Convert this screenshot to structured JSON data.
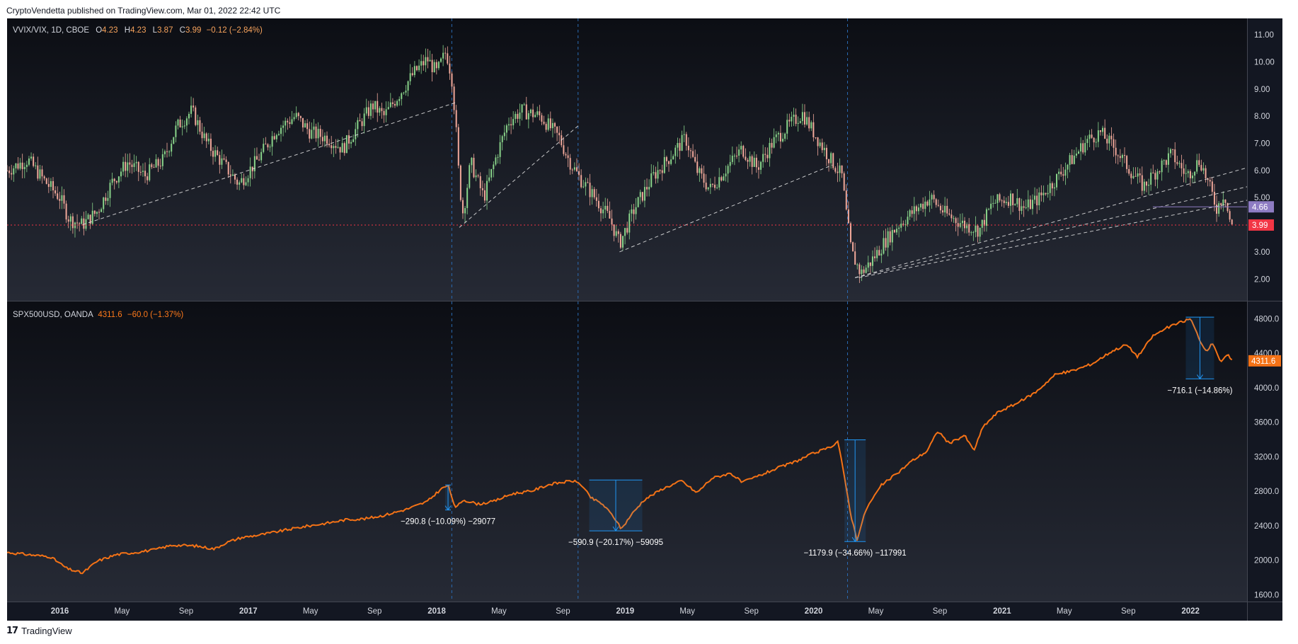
{
  "header": {
    "publisher_line": "CryptoVendetta published on TradingView.com, Mar 01, 2022 22:42 UTC"
  },
  "footer": {
    "brand": "TradingView",
    "logo_icon": "tradingview-logo-icon"
  },
  "colors": {
    "background": "#131722",
    "candle_up": "#89d48a",
    "candle_down": "#f1a89a",
    "spx_line": "#f47216",
    "last_price_red": "#f23645",
    "level_purple": "#8e7cc3",
    "guide_blue": "#2a6bb3",
    "trendline": "#e6e6e6"
  },
  "chart_data": [
    {
      "type": "candlestick",
      "symbol_line": "VVIX/VIX, 1D, CBOE",
      "ohlc": {
        "o_label": "O",
        "o": "4.23",
        "h_label": "H",
        "h": "4.23",
        "l_label": "L",
        "l": "3.87",
        "c_label": "C",
        "c": "3.99",
        "change": "−0.12 (−2.84%)"
      },
      "y_ticks": [
        "11.00",
        "10.00",
        "9.00",
        "8.00",
        "7.00",
        "6.00",
        "5.00",
        "3.00",
        "2.00"
      ],
      "y_tick_values": [
        11,
        10,
        9,
        8,
        7,
        6,
        5,
        3,
        2
      ],
      "ylim": [
        1.2,
        11.6
      ],
      "price_labels": [
        {
          "value": 4.66,
          "text": "4.66",
          "color": "#8e7cc3"
        },
        {
          "value": 3.99,
          "text": "3.99",
          "color": "#f23645"
        }
      ],
      "horizontal_line": 3.99,
      "approx_series": [
        [
          2015.72,
          6.0
        ],
        [
          2015.83,
          6.4
        ],
        [
          2015.92,
          5.6
        ],
        [
          2016.0,
          5.0
        ],
        [
          2016.05,
          4.2
        ],
        [
          2016.12,
          4.0
        ],
        [
          2016.2,
          4.5
        ],
        [
          2016.28,
          5.6
        ],
        [
          2016.36,
          6.3
        ],
        [
          2016.45,
          5.8
        ],
        [
          2016.55,
          6.4
        ],
        [
          2016.62,
          7.6
        ],
        [
          2016.7,
          8.2
        ],
        [
          2016.78,
          7.0
        ],
        [
          2016.86,
          6.3
        ],
        [
          2016.95,
          5.5
        ],
        [
          2017.05,
          6.4
        ],
        [
          2017.15,
          7.5
        ],
        [
          2017.25,
          8.0
        ],
        [
          2017.33,
          7.4
        ],
        [
          2017.42,
          7.2
        ],
        [
          2017.5,
          6.8
        ],
        [
          2017.58,
          7.6
        ],
        [
          2017.66,
          8.4
        ],
        [
          2017.72,
          8.0
        ],
        [
          2017.8,
          8.8
        ],
        [
          2017.88,
          9.6
        ],
        [
          2017.95,
          10.1
        ],
        [
          2018.0,
          9.6
        ],
        [
          2018.05,
          10.4
        ],
        [
          2018.08,
          9.4
        ],
        [
          2018.1,
          7.8
        ],
        [
          2018.12,
          5.5
        ],
        [
          2018.14,
          4.4
        ],
        [
          2018.18,
          6.3
        ],
        [
          2018.25,
          5.0
        ],
        [
          2018.32,
          6.6
        ],
        [
          2018.38,
          7.8
        ],
        [
          2018.45,
          8.2
        ],
        [
          2018.55,
          8.0
        ],
        [
          2018.65,
          7.2
        ],
        [
          2018.7,
          6.4
        ],
        [
          2018.76,
          5.7
        ],
        [
          2018.84,
          5.0
        ],
        [
          2018.92,
          4.2
        ],
        [
          2018.97,
          3.3
        ],
        [
          2019.05,
          4.6
        ],
        [
          2019.15,
          5.8
        ],
        [
          2019.25,
          6.6
        ],
        [
          2019.32,
          7.2
        ],
        [
          2019.38,
          6.0
        ],
        [
          2019.45,
          5.3
        ],
        [
          2019.55,
          6.2
        ],
        [
          2019.62,
          6.8
        ],
        [
          2019.7,
          6.1
        ],
        [
          2019.78,
          7.0
        ],
        [
          2019.86,
          7.6
        ],
        [
          2019.94,
          8.1
        ],
        [
          2020.0,
          7.4
        ],
        [
          2020.08,
          6.5
        ],
        [
          2020.15,
          5.8
        ],
        [
          2020.17,
          4.6
        ],
        [
          2020.2,
          3.0
        ],
        [
          2020.25,
          2.2
        ],
        [
          2020.3,
          2.6
        ],
        [
          2020.38,
          3.4
        ],
        [
          2020.45,
          4.0
        ],
        [
          2020.55,
          4.6
        ],
        [
          2020.62,
          5.0
        ],
        [
          2020.7,
          4.4
        ],
        [
          2020.8,
          4.0
        ],
        [
          2020.88,
          3.8
        ],
        [
          2020.95,
          4.8
        ],
        [
          2021.05,
          5.0
        ],
        [
          2021.12,
          4.6
        ],
        [
          2021.2,
          5.0
        ],
        [
          2021.3,
          5.8
        ],
        [
          2021.38,
          6.5
        ],
        [
          2021.45,
          7.1
        ],
        [
          2021.52,
          7.4
        ],
        [
          2021.6,
          6.8
        ],
        [
          2021.68,
          6.0
        ],
        [
          2021.75,
          5.4
        ],
        [
          2021.82,
          6.0
        ],
        [
          2021.9,
          6.6
        ],
        [
          2021.98,
          5.8
        ],
        [
          2022.05,
          6.4
        ],
        [
          2022.1,
          5.4
        ],
        [
          2022.14,
          4.6
        ],
        [
          2022.18,
          5.2
        ],
        [
          2022.2,
          4.4
        ],
        [
          2022.22,
          3.9
        ]
      ]
    },
    {
      "type": "line",
      "symbol_line": "SPX500USD, OANDA",
      "last": "4311.6",
      "change": "−60.0 (−1.37%)",
      "y_ticks": [
        "4800.0",
        "4400.0",
        "4000.0",
        "3600.0",
        "3200.0",
        "2800.0",
        "2400.0",
        "2000.0",
        "1600.0"
      ],
      "y_tick_values": [
        4800,
        4400,
        4000,
        3600,
        3200,
        2800,
        2400,
        2000,
        1600
      ],
      "ylim": [
        1520,
        5000
      ],
      "price_labels": [
        {
          "value": 4311.6,
          "text": "4311.6",
          "color": "#f47216"
        }
      ],
      "annotations": [
        {
          "x": 2018.06,
          "top": 2872,
          "bottom": 2582,
          "text": "−290.8 (−10.09%) −29077"
        },
        {
          "x": 2018.95,
          "top": 2930,
          "bottom": 2340,
          "text": "−590.9 (−20.17%) −59095"
        },
        {
          "x": 2020.22,
          "top": 3395,
          "bottom": 2216,
          "text": "−1179.9 (−34.66%) −117991"
        },
        {
          "x": 2022.05,
          "top": 4818,
          "bottom": 4102,
          "text": "−716.1 (−14.86%)"
        }
      ],
      "approx_series": [
        [
          2015.72,
          2090
        ],
        [
          2015.85,
          2060
        ],
        [
          2015.95,
          2040
        ],
        [
          2016.04,
          1900
        ],
        [
          2016.12,
          1850
        ],
        [
          2016.2,
          1990
        ],
        [
          2016.3,
          2065
        ],
        [
          2016.4,
          2090
        ],
        [
          2016.5,
          2120
        ],
        [
          2016.6,
          2175
        ],
        [
          2016.72,
          2165
        ],
        [
          2016.82,
          2130
        ],
        [
          2016.88,
          2200
        ],
        [
          2016.96,
          2260
        ],
        [
          2017.08,
          2300
        ],
        [
          2017.2,
          2350
        ],
        [
          2017.3,
          2390
        ],
        [
          2017.42,
          2430
        ],
        [
          2017.52,
          2470
        ],
        [
          2017.62,
          2480
        ],
        [
          2017.72,
          2520
        ],
        [
          2017.84,
          2590
        ],
        [
          2017.95,
          2680
        ],
        [
          2018.02,
          2820
        ],
        [
          2018.06,
          2870
        ],
        [
          2018.1,
          2600
        ],
        [
          2018.14,
          2700
        ],
        [
          2018.22,
          2650
        ],
        [
          2018.3,
          2680
        ],
        [
          2018.4,
          2770
        ],
        [
          2018.5,
          2800
        ],
        [
          2018.6,
          2880
        ],
        [
          2018.72,
          2920
        ],
        [
          2018.76,
          2890
        ],
        [
          2018.82,
          2720
        ],
        [
          2018.88,
          2650
        ],
        [
          2018.94,
          2500
        ],
        [
          2018.98,
          2360
        ],
        [
          2019.03,
          2520
        ],
        [
          2019.1,
          2700
        ],
        [
          2019.2,
          2830
        ],
        [
          2019.3,
          2920
        ],
        [
          2019.38,
          2780
        ],
        [
          2019.46,
          2950
        ],
        [
          2019.56,
          3010
        ],
        [
          2019.62,
          2900
        ],
        [
          2019.7,
          2970
        ],
        [
          2019.8,
          3060
        ],
        [
          2019.9,
          3140
        ],
        [
          2020.0,
          3240
        ],
        [
          2020.08,
          3300
        ],
        [
          2020.13,
          3380
        ],
        [
          2020.16,
          3000
        ],
        [
          2020.2,
          2500
        ],
        [
          2020.23,
          2240
        ],
        [
          2020.28,
          2600
        ],
        [
          2020.36,
          2870
        ],
        [
          2020.44,
          3000
        ],
        [
          2020.52,
          3150
        ],
        [
          2020.6,
          3260
        ],
        [
          2020.66,
          3500
        ],
        [
          2020.72,
          3350
        ],
        [
          2020.8,
          3450
        ],
        [
          2020.85,
          3270
        ],
        [
          2020.9,
          3550
        ],
        [
          2020.98,
          3720
        ],
        [
          2021.08,
          3820
        ],
        [
          2021.18,
          3950
        ],
        [
          2021.28,
          4150
        ],
        [
          2021.38,
          4200
        ],
        [
          2021.48,
          4280
        ],
        [
          2021.58,
          4420
        ],
        [
          2021.66,
          4500
        ],
        [
          2021.72,
          4360
        ],
        [
          2021.8,
          4600
        ],
        [
          2021.88,
          4700
        ],
        [
          2021.95,
          4760
        ],
        [
          2022.0,
          4800
        ],
        [
          2022.04,
          4600
        ],
        [
          2022.08,
          4420
        ],
        [
          2022.12,
          4520
        ],
        [
          2022.16,
          4300
        ],
        [
          2022.2,
          4380
        ],
        [
          2022.22,
          4311
        ]
      ]
    }
  ],
  "x_axis": {
    "range": [
      2015.72,
      2022.3
    ],
    "ticks": [
      {
        "t": 2016.0,
        "label": "2016",
        "bold": true
      },
      {
        "t": 2016.33,
        "label": "May",
        "bold": false
      },
      {
        "t": 2016.67,
        "label": "Sep",
        "bold": false
      },
      {
        "t": 2017.0,
        "label": "2017",
        "bold": true
      },
      {
        "t": 2017.33,
        "label": "May",
        "bold": false
      },
      {
        "t": 2017.67,
        "label": "Sep",
        "bold": false
      },
      {
        "t": 2018.0,
        "label": "2018",
        "bold": true
      },
      {
        "t": 2018.33,
        "label": "May",
        "bold": false
      },
      {
        "t": 2018.67,
        "label": "Sep",
        "bold": false
      },
      {
        "t": 2019.0,
        "label": "2019",
        "bold": true
      },
      {
        "t": 2019.33,
        "label": "May",
        "bold": false
      },
      {
        "t": 2019.67,
        "label": "Sep",
        "bold": false
      },
      {
        "t": 2020.0,
        "label": "2020",
        "bold": true
      },
      {
        "t": 2020.33,
        "label": "May",
        "bold": false
      },
      {
        "t": 2020.67,
        "label": "Sep",
        "bold": false
      },
      {
        "t": 2021.0,
        "label": "2021",
        "bold": true
      },
      {
        "t": 2021.33,
        "label": "May",
        "bold": false
      },
      {
        "t": 2021.67,
        "label": "Sep",
        "bold": false
      },
      {
        "t": 2022.0,
        "label": "2022",
        "bold": true
      }
    ],
    "vertical_guides": [
      2018.08,
      2018.75,
      2020.18
    ]
  }
}
